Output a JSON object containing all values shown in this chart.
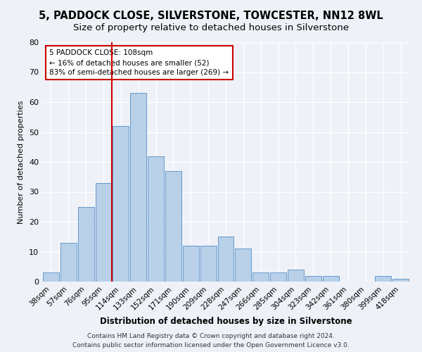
{
  "title1": "5, PADDOCK CLOSE, SILVERSTONE, TOWCESTER, NN12 8WL",
  "title2": "Size of property relative to detached houses in Silverstone",
  "xlabel": "Distribution of detached houses by size in Silverstone",
  "ylabel": "Number of detached properties",
  "categories": [
    "38sqm",
    "57sqm",
    "76sqm",
    "95sqm",
    "114sqm",
    "133sqm",
    "152sqm",
    "171sqm",
    "190sqm",
    "209sqm",
    "228sqm",
    "247sqm",
    "266sqm",
    "285sqm",
    "304sqm",
    "323sqm",
    "342sqm",
    "361sqm",
    "380sqm",
    "399sqm",
    "418sqm"
  ],
  "values": [
    3,
    13,
    25,
    33,
    52,
    63,
    42,
    37,
    12,
    12,
    15,
    11,
    3,
    3,
    4,
    2,
    2,
    0,
    0,
    2,
    1
  ],
  "bar_color": "#b8d0e8",
  "bar_edge_color": "#6699cc",
  "ref_line_x": 3.5,
  "ref_line_color": "#cc0000",
  "annotation_line1": "5 PADDOCK CLOSE: 108sqm",
  "annotation_line2": "← 16% of detached houses are smaller (52)",
  "annotation_line3": "83% of semi-detached houses are larger (269) →",
  "annotation_box_edgecolor": "#cc0000",
  "annotation_box_facecolor": "#ffffff",
  "ylim": [
    0,
    80
  ],
  "yticks": [
    0,
    10,
    20,
    30,
    40,
    50,
    60,
    70,
    80
  ],
  "footer1": "Contains HM Land Registry data © Crown copyright and database right 2024.",
  "footer2": "Contains public sector information licensed under the Open Government Licence v3.0.",
  "background_color": "#eef2f8",
  "title1_fontsize": 10.5,
  "title2_fontsize": 9.5,
  "xlabel_fontsize": 8.5,
  "ylabel_fontsize": 8,
  "footer_fontsize": 6.5,
  "annotation_fontsize": 7.5,
  "grid_color": "#ffffff",
  "tick_fontsize": 7.5
}
